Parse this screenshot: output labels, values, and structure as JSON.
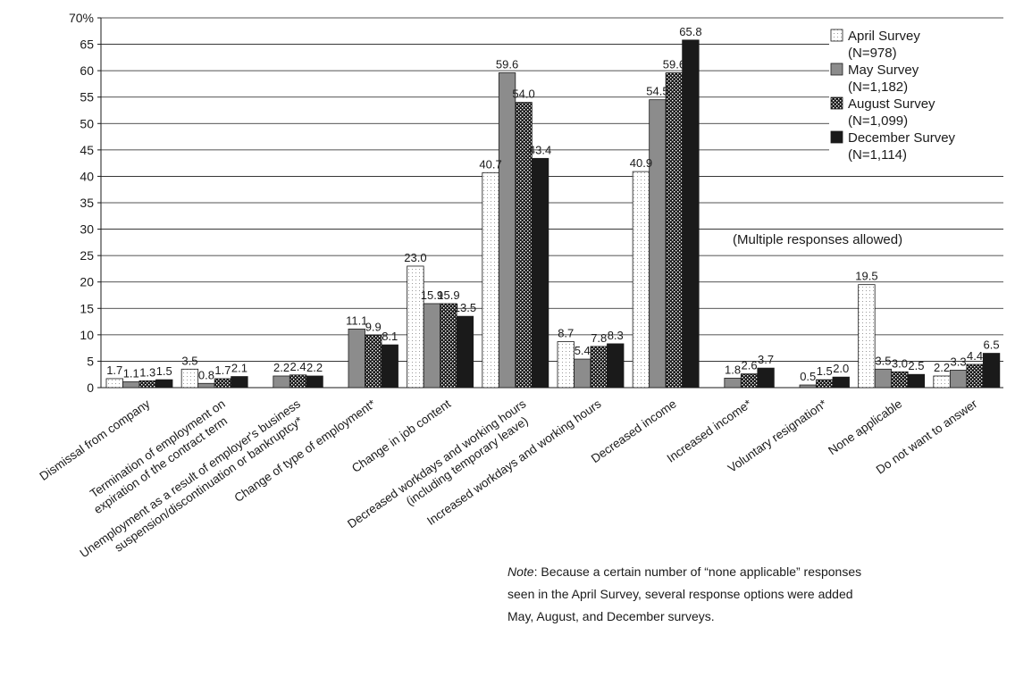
{
  "chart_data": {
    "type": "bar",
    "ylim": [
      0,
      70
    ],
    "y_ticks": [
      "0",
      "5",
      "10",
      "15",
      "20",
      "25",
      "30",
      "35",
      "40",
      "45",
      "50",
      "55",
      "60",
      "65",
      "70%"
    ],
    "grid": "horizontal",
    "legend_position": "top-right",
    "categories": [
      [
        "Dismissal from company"
      ],
      [
        "Termination of employment on",
        "expiration of the contract term"
      ],
      [
        "Unemployment as a result of employer's business",
        "suspension/discontinuation or bankruptcy*"
      ],
      [
        "Change of type of employment*"
      ],
      [
        "Change in job content"
      ],
      [
        "Decreased workdays and working hours",
        "(including temporary leave)"
      ],
      [
        "Increased workdays and working hours"
      ],
      [
        "Decreased income"
      ],
      [
        "Increased income*"
      ],
      [
        "Voluntary resignation*"
      ],
      [
        "None applicable"
      ],
      [
        "Do not want to answer"
      ]
    ],
    "series": [
      {
        "name": "April Survey",
        "name2": "(N=978)",
        "color": "#ffffff",
        "pattern": "dots-light",
        "values": [
          1.7,
          3.5,
          null,
          null,
          23.0,
          40.7,
          8.7,
          40.9,
          null,
          null,
          19.5,
          2.2
        ],
        "labels": [
          "1.7",
          "3.5",
          "",
          "",
          "23.0",
          "40.7",
          "8.7",
          "40.9",
          "",
          "",
          "19.5",
          "2.2"
        ]
      },
      {
        "name": "May Survey",
        "name2": "(N=1,182)",
        "color": "#8c8c8c",
        "pattern": "solid",
        "values": [
          1.1,
          0.8,
          2.2,
          11.1,
          15.9,
          59.6,
          5.4,
          54.5,
          1.8,
          0.5,
          3.5,
          3.3
        ],
        "labels": [
          "1.1",
          "0.8",
          "2.2",
          "11.1",
          "15.9",
          "59.6",
          "5.4",
          "54.5",
          "1.8",
          "0.5",
          "3.5",
          "3.3"
        ]
      },
      {
        "name": "August Survey",
        "name2": "(N=1,099)",
        "color": "#1a1a1a",
        "pattern": "checker",
        "values": [
          1.3,
          1.7,
          2.4,
          9.9,
          15.9,
          54.0,
          7.8,
          59.6,
          2.6,
          1.5,
          3.0,
          4.4
        ],
        "labels": [
          "1.3",
          "1.7",
          "2.4",
          "9.9",
          "15.9",
          "54.0",
          "7.8",
          "59.6",
          "2.6",
          "1.5",
          "3.0",
          "4.4"
        ]
      },
      {
        "name": "December Survey",
        "name2": "(N=1,114)",
        "color": "#1a1a1a",
        "pattern": "solid",
        "values": [
          1.5,
          2.1,
          2.2,
          8.1,
          13.5,
          43.4,
          8.3,
          65.8,
          3.7,
          2.0,
          2.5,
          6.5
        ],
        "labels": [
          "1.5",
          "2.1",
          "2.2",
          "8.1",
          "13.5",
          "43.4",
          "8.3",
          "65.8",
          "3.7",
          "2.0",
          "2.5",
          "6.5"
        ]
      }
    ],
    "annotation": "(Multiple responses allowed)",
    "note": {
      "label": "Note",
      "lines": [
        ": Because a certain number of “none applicable” responses",
        "seen in the April Survey, several response options were added",
        "May, August, and December surveys."
      ]
    }
  }
}
